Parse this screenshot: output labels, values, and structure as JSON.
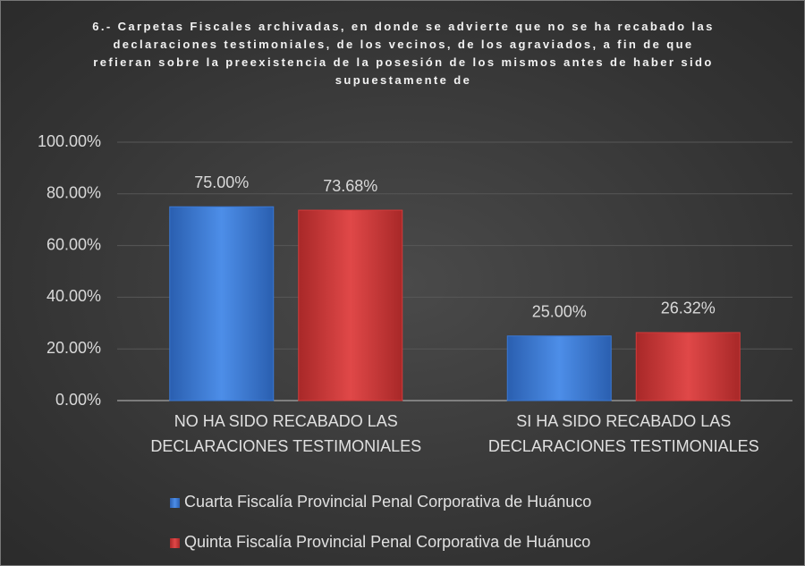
{
  "chart_data": {
    "type": "bar",
    "title": "6.- Carpetas Fiscales archivadas, en donde se advierte que no se ha recabado las declaraciones testimoniales, de los vecinos, de los agraviados, a fin de que refieran sobre la preexistencia de la posesión de los mismos antes de haber sido supuestamente de",
    "categories": [
      "NO HA SIDO RECABADO LAS DECLARACIONES TESTIMONIALES",
      "SI HA SIDO RECABADO LAS DECLARACIONES TESTIMONIALES"
    ],
    "series": [
      {
        "name": "Cuarta Fiscalía Provincial Penal Corporativa de Huánuco",
        "color": "#3a78d4",
        "values": [
          75,
          25
        ],
        "value_labels": [
          "75.00%",
          "25.00%"
        ]
      },
      {
        "name": "Quinta Fiscalía Provincial Penal Corporativa de Huánuco",
        "color": "#d33a3a",
        "values": [
          73.68,
          26.32
        ],
        "value_labels": [
          "73.68%",
          "26.32%"
        ]
      }
    ],
    "ylim": [
      0,
      100
    ],
    "yticks": [
      {
        "value": 0,
        "label": "0.00%"
      },
      {
        "value": 20,
        "label": "20.00%"
      },
      {
        "value": 40,
        "label": "40.00%"
      },
      {
        "value": 60,
        "label": "60.00%"
      },
      {
        "value": 80,
        "label": "80.00%"
      },
      {
        "value": 100,
        "label": "100.00%"
      }
    ],
    "grid": true,
    "legend": "bottom"
  }
}
